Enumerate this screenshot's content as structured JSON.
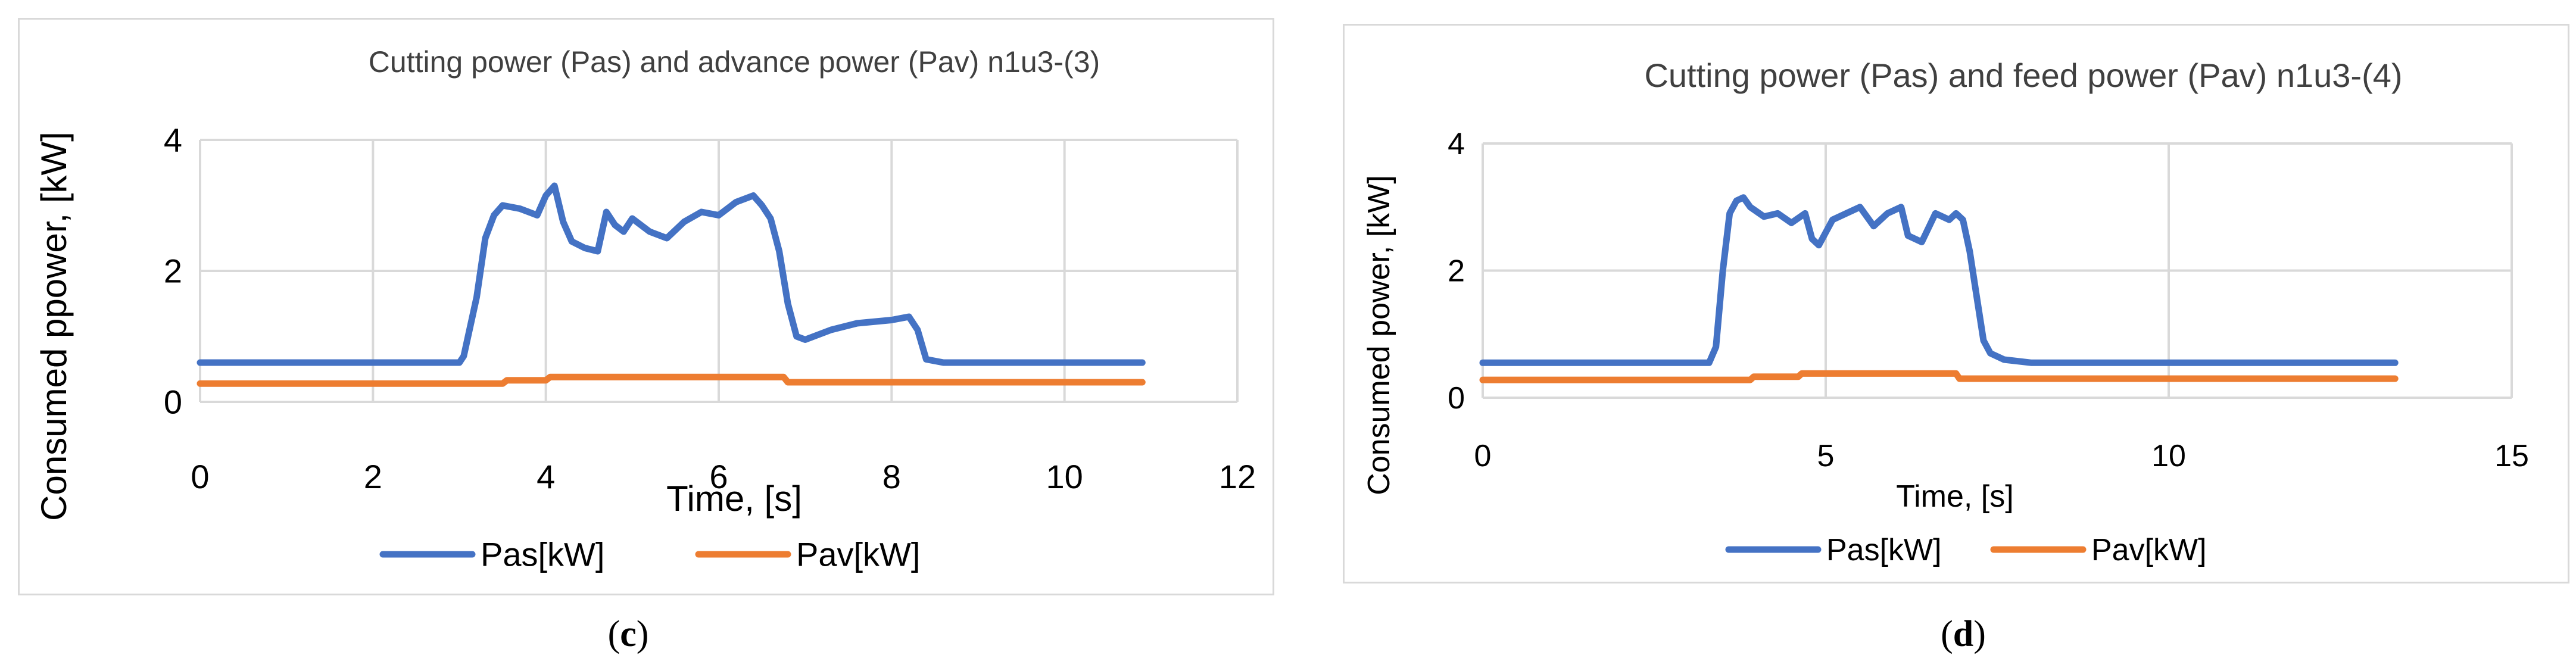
{
  "chart_data": [
    {
      "type": "line",
      "title": "Cutting power (Pas) and advance power (Pav) n1u3-(3)",
      "xlabel": "Time, [s]",
      "ylabel": "Consumed ppower, [kW]",
      "xlim": [
        0,
        12
      ],
      "ylim": [
        0,
        4
      ],
      "xticks": [
        "0",
        "2",
        "4",
        "6",
        "8",
        "10",
        "12"
      ],
      "yticks": [
        "0",
        "2",
        "4"
      ],
      "grid": true,
      "legend": "bottom",
      "series": [
        {
          "name": "Pas[kW]",
          "color": "#4472c4",
          "x": [
            0,
            0.5,
            1.0,
            1.5,
            2.0,
            2.5,
            3.0,
            3.05,
            3.2,
            3.3,
            3.4,
            3.5,
            3.7,
            3.9,
            4.0,
            4.1,
            4.2,
            4.3,
            4.45,
            4.6,
            4.7,
            4.8,
            4.9,
            5.0,
            5.2,
            5.4,
            5.6,
            5.8,
            6.0,
            6.2,
            6.4,
            6.5,
            6.6,
            6.7,
            6.8,
            6.9,
            7.0,
            7.3,
            7.6,
            8.0,
            8.2,
            8.3,
            8.4,
            8.6,
            9.0,
            10.0,
            10.9
          ],
          "y": [
            0.6,
            0.6,
            0.6,
            0.6,
            0.6,
            0.6,
            0.6,
            0.7,
            1.6,
            2.5,
            2.85,
            3.0,
            2.95,
            2.85,
            3.15,
            3.3,
            2.75,
            2.45,
            2.35,
            2.3,
            2.9,
            2.7,
            2.6,
            2.8,
            2.6,
            2.5,
            2.75,
            2.9,
            2.85,
            3.05,
            3.15,
            3.0,
            2.8,
            2.3,
            1.5,
            1.0,
            0.95,
            1.1,
            1.2,
            1.25,
            1.3,
            1.1,
            0.65,
            0.6,
            0.6,
            0.6,
            0.6
          ]
        },
        {
          "name": "Pav[kW]",
          "color": "#ed7d31",
          "x": [
            0,
            3.5,
            3.55,
            4.0,
            4.05,
            6.75,
            6.8,
            10.9
          ],
          "y": [
            0.28,
            0.28,
            0.33,
            0.33,
            0.38,
            0.38,
            0.3,
            0.3
          ]
        }
      ]
    },
    {
      "type": "line",
      "title": "Cutting power (Pas) and feed power (Pav) n1u3-(4)",
      "xlabel": "Time, [s]",
      "ylabel": "Consumed power, [kW]",
      "xlim": [
        0,
        15
      ],
      "ylim": [
        0,
        4
      ],
      "xticks": [
        "0",
        "5",
        "10",
        "15"
      ],
      "yticks": [
        "0",
        "2",
        "4"
      ],
      "grid": true,
      "legend": "bottom",
      "series": [
        {
          "name": "Pas[kW]",
          "color": "#4472c4",
          "x": [
            0,
            1,
            2,
            3,
            3.3,
            3.4,
            3.5,
            3.6,
            3.7,
            3.8,
            3.9,
            4.1,
            4.3,
            4.5,
            4.7,
            4.8,
            4.9,
            5.1,
            5.3,
            5.5,
            5.7,
            5.9,
            6.1,
            6.2,
            6.4,
            6.6,
            6.8,
            6.9,
            7.0,
            7.1,
            7.2,
            7.3,
            7.4,
            7.6,
            8.0,
            10,
            12,
            13.3
          ],
          "y": [
            0.55,
            0.55,
            0.55,
            0.55,
            0.55,
            0.8,
            2.0,
            2.9,
            3.1,
            3.15,
            3.0,
            2.85,
            2.9,
            2.75,
            2.9,
            2.5,
            2.4,
            2.8,
            2.9,
            3.0,
            2.7,
            2.9,
            3.0,
            2.55,
            2.45,
            2.9,
            2.8,
            2.9,
            2.8,
            2.3,
            1.6,
            0.9,
            0.7,
            0.6,
            0.55,
            0.55,
            0.55,
            0.55
          ]
        },
        {
          "name": "Pav[kW]",
          "color": "#ed7d31",
          "x": [
            0,
            3.9,
            3.95,
            4.6,
            4.65,
            6.9,
            6.95,
            13.3
          ],
          "y": [
            0.28,
            0.28,
            0.33,
            0.33,
            0.38,
            0.38,
            0.3,
            0.3
          ]
        }
      ]
    }
  ],
  "captions": {
    "c": "c",
    "d": "d"
  }
}
